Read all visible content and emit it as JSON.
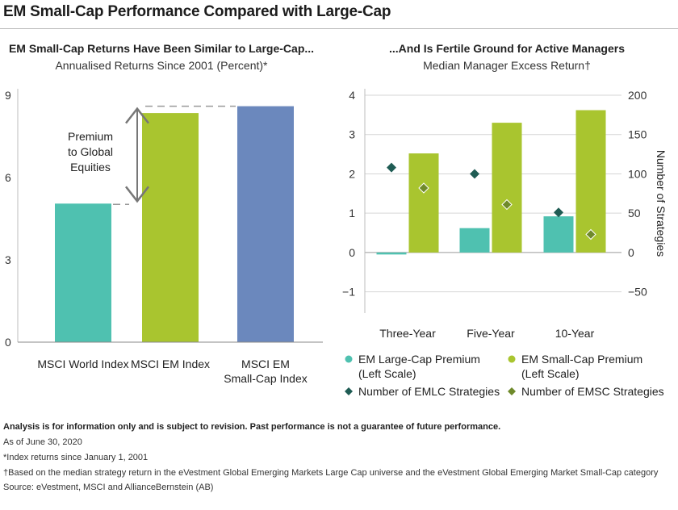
{
  "title": "EM Small-Cap Performance Compared with Large-Cap",
  "colors": {
    "teal": "#4fc1b0",
    "green": "#a9c52f",
    "blue": "#6b88bd",
    "dark_teal": "#1f5c54",
    "olive": "#6f8a2b",
    "grey": "#999999"
  },
  "chart_data": [
    {
      "type": "bar",
      "title": "EM Small-Cap Returns Have Been Similar to Large-Cap...",
      "subtitle": "Annualised Returns Since 2001 (Percent)*",
      "categories": [
        "MSCI World Index",
        "MSCI EM Index",
        "MSCI EM Small-Cap Index"
      ],
      "category_lines": [
        [
          "MSCI World Index"
        ],
        [
          "MSCI EM Index"
        ],
        [
          "MSCI EM",
          "Small-Cap Index"
        ]
      ],
      "values": [
        5.05,
        8.35,
        8.6
      ],
      "ylim": [
        0,
        9
      ],
      "yticks": [
        0,
        3,
        6,
        9
      ],
      "annotation": "Premium to Global Equities",
      "annotation_lines": [
        "Premium",
        "to Global",
        "Equities"
      ],
      "grid": false
    },
    {
      "type": "bar",
      "title": "...And Is Fertile Ground for Active Managers",
      "subtitle": "Median Manager Excess Return†",
      "categories": [
        "Three-Year",
        "Five-Year",
        "10-Year"
      ],
      "ylim": [
        -1.5,
        4
      ],
      "yticks": [
        -1,
        0,
        1,
        2,
        3,
        4
      ],
      "ylim_right": [
        -75,
        200
      ],
      "yticks_right": [
        -50,
        0,
        50,
        100,
        150,
        200
      ],
      "ylabel_right": "Number of Strategies",
      "series": [
        {
          "name": "EM Large-Cap Premium (Left Scale)",
          "name_lines": [
            "EM Large-Cap Premium",
            "(Left Scale)"
          ],
          "kind": "bar",
          "axis": "left",
          "values": [
            -0.05,
            0.62,
            0.92
          ]
        },
        {
          "name": "EM Small-Cap Premium (Left Scale)",
          "name_lines": [
            "EM Small-Cap Premium",
            "(Left Scale)"
          ],
          "kind": "bar",
          "axis": "left",
          "values": [
            2.52,
            3.3,
            3.62
          ]
        },
        {
          "name": "Number of EMLC Strategies",
          "name_lines": [
            "Number of EMLC Strategies"
          ],
          "kind": "scatter",
          "axis": "right",
          "values": [
            108,
            100,
            51
          ]
        },
        {
          "name": "Number of EMSC Strategies",
          "name_lines": [
            "Number of EMSC Strategies"
          ],
          "kind": "scatter",
          "axis": "right",
          "values": [
            82,
            61,
            23
          ]
        }
      ],
      "legend_position": "bottom",
      "grid": true
    }
  ],
  "notes": {
    "disclaimer": "Analysis is for information only and is subject to revision. Past performance is not a guarantee of future performance.",
    "date": "As of June 30, 2020",
    "footnote_star": "*Index returns since January 1, 2001",
    "footnote_dagger": "†Based on the median strategy return in the eVestment Global Emerging Markets Large Cap universe and the eVestment Global Emerging Market Small-Cap category",
    "source": "Source: eVestment, MSCI and AllianceBernstein (AB)"
  }
}
